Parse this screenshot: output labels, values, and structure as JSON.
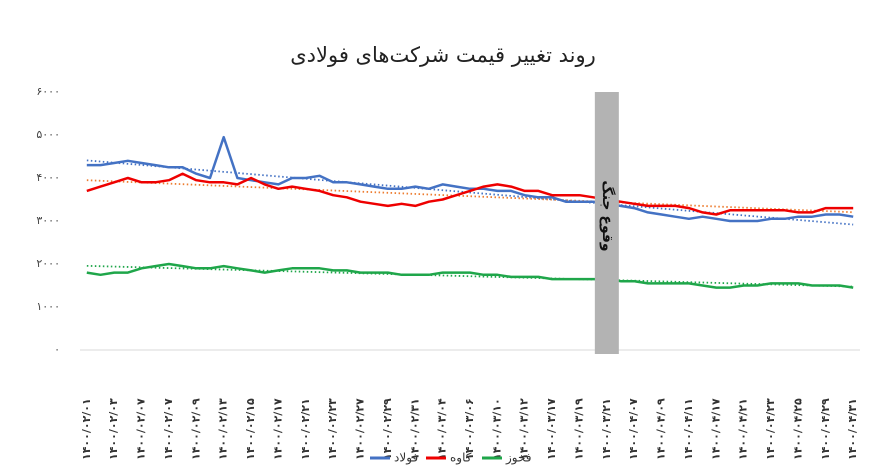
{
  "chart_data": {
    "type": "line",
    "title": "روند تغییر قیمت شرکت‌های فولادی",
    "categories": [
      "۱۴۰۰/۰۲/۰۱",
      null,
      "۱۴۰۰/۰۲/۰۳",
      null,
      "۱۴۰۰/۰۲/۰۷",
      null,
      "۱۴۰۰/۰۲/۰۷",
      null,
      "۱۴۰۰/۰۲/۰۹",
      null,
      "۱۴۰۰/۰۲/۱۳",
      null,
      "۱۴۰۰/۰۲/۱۵",
      null,
      "۱۴۰۰/۰۲/۱۷",
      null,
      "۱۴۰۰/۰۲/۲۱",
      null,
      "۱۴۰۰/۰۲/۲۳",
      null,
      "۱۴۰۰/۰۲/۲۷",
      null,
      "۱۴۰۰/۰۲/۲۹",
      null,
      "۱۴۰۰/۰۲/۳۱",
      null,
      "۱۴۰۰/۰۳/۰۴",
      null,
      "۱۴۰۰/۰۳/۰۶",
      null,
      "۱۴۰۰/۰۳/۱۰",
      null,
      "۱۴۰۰/۰۳/۱۲",
      null,
      "۱۴۰۰/۰۳/۱۷",
      null,
      "۱۴۰۰/۰۳/۱۹",
      null,
      "۱۴۰۰/۰۳/۲۱",
      null,
      "۱۴۰۰/۰۴/۰۷",
      null,
      "۱۴۰۰/۰۴/۰۹",
      null,
      "۱۴۰۰/۰۴/۱۱",
      null,
      "۱۴۰۰/۰۴/۱۷",
      null,
      "۱۴۰۰/۰۴/۲۱",
      null,
      "۱۴۰۰/۰۴/۲۳",
      null,
      "۱۴۰۰/۰۴/۲۵",
      null,
      "۱۴۰۰/۰۴/۲۹",
      null,
      "۱۴۰۰/۰۴/۳۱"
    ],
    "series": [
      {
        "name": "فولاد",
        "color": "#4472c4",
        "trend_color": "#4472c4",
        "values": [
          4300,
          4300,
          4350,
          4400,
          4350,
          4300,
          4250,
          4250,
          4100,
          4000,
          4950,
          4000,
          3950,
          3900,
          3850,
          4000,
          4000,
          4050,
          3900,
          3900,
          3850,
          3800,
          3750,
          3750,
          3800,
          3750,
          3850,
          3800,
          3750,
          3750,
          3700,
          3700,
          3600,
          3550,
          3550,
          3450,
          3450,
          3450,
          3400,
          3350,
          3300,
          3200,
          3150,
          3100,
          3050,
          3100,
          3050,
          3000,
          3000,
          3000,
          3050,
          3050,
          3100,
          3100,
          3150,
          3150,
          3100
        ]
      },
      {
        "name": "کاوه",
        "color": "#ee0000",
        "trend_color": "#ed7d31",
        "values": [
          3700,
          3800,
          3900,
          4000,
          3900,
          3900,
          3950,
          4100,
          3950,
          3900,
          3900,
          3850,
          4000,
          3850,
          3750,
          3800,
          3750,
          3700,
          3600,
          3550,
          3450,
          3400,
          3350,
          3400,
          3350,
          3450,
          3500,
          3600,
          3700,
          3800,
          3850,
          3800,
          3700,
          3700,
          3600,
          3600,
          3600,
          3550,
          3500,
          3450,
          3400,
          3350,
          3350,
          3350,
          3300,
          3200,
          3150,
          3250,
          3250,
          3250,
          3250,
          3250,
          3200,
          3200,
          3300,
          3300,
          3300
        ]
      },
      {
        "name": "فخوز",
        "color": "#1fa64a",
        "trend_color": "#1fa64a",
        "values": [
          1800,
          1750,
          1800,
          1800,
          1900,
          1950,
          2000,
          1950,
          1900,
          1900,
          1950,
          1900,
          1850,
          1800,
          1850,
          1900,
          1900,
          1900,
          1850,
          1850,
          1800,
          1800,
          1800,
          1750,
          1750,
          1750,
          1800,
          1800,
          1800,
          1750,
          1750,
          1700,
          1700,
          1700,
          1650,
          1650,
          1650,
          1650,
          1650,
          1600,
          1600,
          1550,
          1550,
          1550,
          1550,
          1500,
          1450,
          1450,
          1500,
          1500,
          1550,
          1550,
          1550,
          1500,
          1500,
          1500,
          1450
        ]
      }
    ],
    "ylim": [
      0,
      6000
    ],
    "yticks": [
      {
        "value": 0,
        "label": "۰"
      },
      {
        "value": 1000,
        "label": "۱۰۰۰"
      },
      {
        "value": 2000,
        "label": "۲۰۰۰"
      },
      {
        "value": 3000,
        "label": "۳۰۰۰"
      },
      {
        "value": 4000,
        "label": "۴۰۰۰"
      },
      {
        "value": 5000,
        "label": "۵۰۰۰"
      },
      {
        "value": 6000,
        "label": "۶۰۰۰"
      }
    ],
    "grid": false,
    "trendline": true,
    "annotation": {
      "text": "وقوع جنگ",
      "category": "۱۴۰۰/۰۳/۲۱"
    },
    "legend": "bottom"
  }
}
